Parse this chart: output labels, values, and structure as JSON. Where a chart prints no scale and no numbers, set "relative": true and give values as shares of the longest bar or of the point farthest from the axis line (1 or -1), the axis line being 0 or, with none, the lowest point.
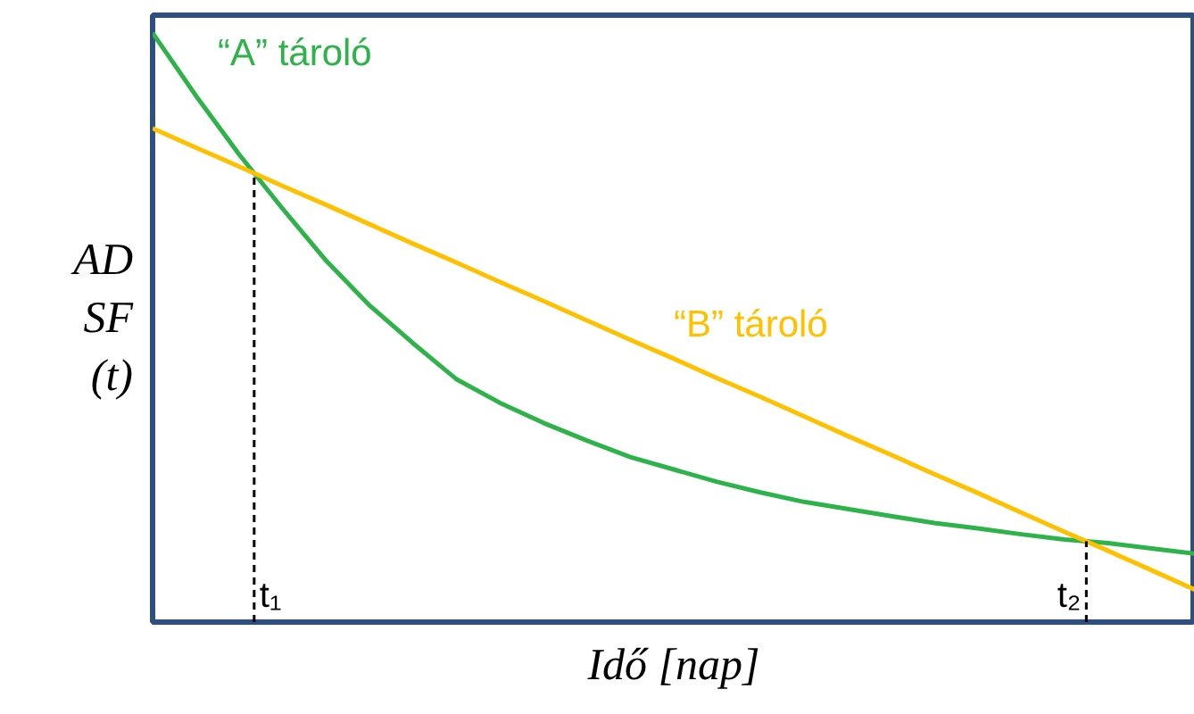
{
  "chart_data": {
    "type": "line",
    "relative": true,
    "xlabel": "Idő [nap]",
    "ylabel": "AD SF (t)",
    "categories": [
      null,
      null,
      null,
      null,
      null,
      null,
      null,
      null,
      null,
      null,
      null,
      null,
      null,
      null,
      null,
      null,
      null,
      null,
      null,
      null,
      null,
      null,
      null,
      null,
      null
    ],
    "series": [
      {
        "name": "“A” tároló",
        "color": "#2db34a",
        "values": [
          1.0,
          0.893,
          0.793,
          0.701,
          0.613,
          0.537,
          0.473,
          0.412,
          0.372,
          0.338,
          0.308,
          0.28,
          0.259,
          0.238,
          0.22,
          0.204,
          0.192,
          0.18,
          0.168,
          0.159,
          0.149,
          0.14,
          0.134,
          0.125,
          0.116
        ]
      },
      {
        "name": "“B” tároló",
        "color": "#ffc000",
        "values": [
          0.838,
          0.805,
          0.773,
          0.74,
          0.708,
          0.675,
          0.642,
          0.61,
          0.577,
          0.545,
          0.512,
          0.479,
          0.447,
          0.414,
          0.382,
          0.349,
          0.316,
          0.284,
          0.251,
          0.219,
          0.186,
          0.153,
          0.121,
          0.088,
          0.055
        ]
      }
    ],
    "annotations": [
      "t₁",
      "t₂"
    ],
    "grid": false
  }
}
